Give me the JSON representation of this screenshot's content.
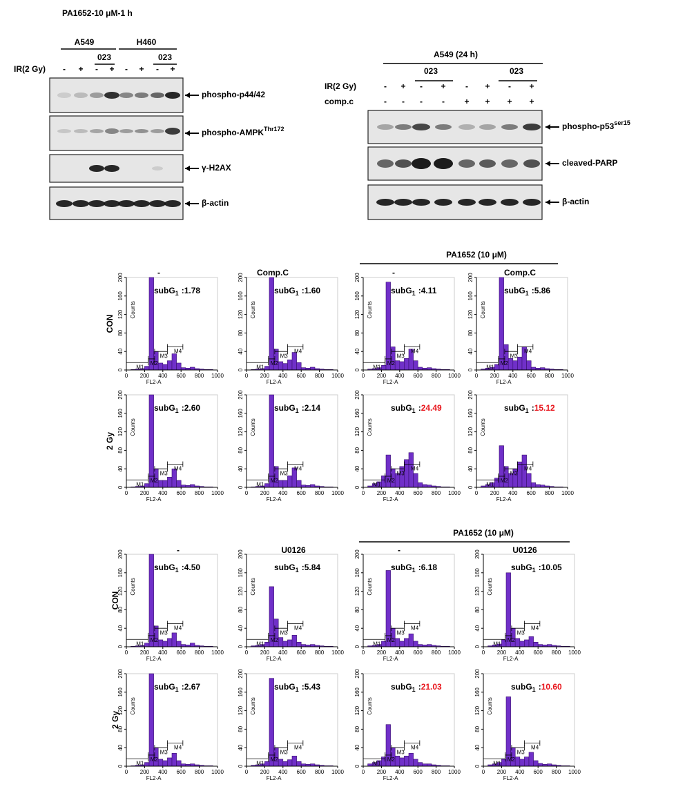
{
  "blots": [
    {
      "title": "PA1652-10 μM-1 h",
      "groups": [
        "A549",
        "H460"
      ],
      "drug": [
        "023",
        "023"
      ],
      "row_labels": [
        "IR(2 Gy)"
      ],
      "ir": [
        "-",
        "+",
        "-",
        "+",
        "-",
        "+",
        "-",
        "+"
      ],
      "proteins": [
        {
          "text": "phospho-p44/42"
        },
        {
          "text": "phospho-AMPK",
          "sup": "Thr172"
        },
        {
          "text": "γ-H2AX"
        },
        {
          "text": "β-actin"
        }
      ]
    },
    {
      "title": "A549 (24 h)",
      "drug": [
        "023",
        "023"
      ],
      "row_labels": [
        "IR(2 Gy)",
        "comp.c"
      ],
      "ir": [
        "-",
        "+",
        "-",
        "+",
        "-",
        "+",
        "-",
        "+"
      ],
      "compc": [
        "-",
        "-",
        "-",
        "-",
        "+",
        "+",
        "+",
        "+"
      ],
      "proteins": [
        {
          "text": "phospho-p53",
          "sup": "ser15"
        },
        {
          "text": "cleaved-PARP"
        },
        {
          "text": "β-actin"
        }
      ]
    }
  ],
  "histogram": {
    "xlim": [
      0,
      1000
    ],
    "ylim": [
      0,
      200
    ],
    "xticks": [
      0,
      200,
      400,
      600,
      800,
      1000
    ],
    "yticks": [
      0,
      40,
      80,
      120,
      160,
      200
    ],
    "xlabel": "FL2-A",
    "ylabel": "Counts",
    "bins": [
      0,
      50,
      100,
      150,
      200,
      250,
      300,
      350,
      400,
      450,
      500,
      550,
      600,
      650,
      700,
      750,
      800,
      850,
      900,
      950,
      1000
    ],
    "fill": "#7030c8",
    "gates": [
      {
        "label": "M1",
        "range": [
          0,
          240
        ]
      },
      {
        "label": "M2",
        "range": [
          240,
          310
        ]
      },
      {
        "label": "M3",
        "range": [
          310,
          450
        ]
      },
      {
        "label": "M4",
        "range": [
          450,
          620
        ]
      }
    ],
    "subg1": {
      "prefix": "subG",
      "sub": "1",
      "sep": ":"
    }
  },
  "flow": [
    {
      "header": "PA1652 (10 μM)",
      "columns": [
        "-",
        "Comp.C",
        "-",
        "Comp.C"
      ],
      "rows": [
        {
          "label": "CON",
          "plots": [
            {
              "value": "1.78",
              "color": "#000000",
              "counts": [
                0,
                1,
                2,
                3,
                8,
                200,
                40,
                15,
                12,
                20,
                35,
                15,
                5,
                4,
                6,
                3,
                2,
                1,
                1,
                0
              ]
            },
            {
              "value": "1.60",
              "color": "#000000",
              "counts": [
                0,
                1,
                2,
                3,
                8,
                200,
                45,
                18,
                14,
                22,
                38,
                16,
                5,
                4,
                6,
                3,
                2,
                1,
                1,
                0
              ]
            },
            {
              "value": "4.11",
              "color": "#000000",
              "counts": [
                0,
                2,
                3,
                5,
                10,
                190,
                50,
                20,
                18,
                25,
                45,
                20,
                6,
                4,
                5,
                3,
                2,
                1,
                1,
                0
              ]
            },
            {
              "value": "5.86",
              "color": "#000000",
              "counts": [
                0,
                2,
                4,
                6,
                12,
                200,
                55,
                25,
                20,
                28,
                50,
                20,
                6,
                4,
                5,
                3,
                2,
                1,
                1,
                0
              ]
            }
          ]
        },
        {
          "label": "2 Gy",
          "plots": [
            {
              "value": "2.60",
              "color": "#000000",
              "counts": [
                0,
                1,
                2,
                3,
                8,
                200,
                40,
                15,
                15,
                22,
                40,
                15,
                5,
                4,
                6,
                3,
                2,
                1,
                1,
                0
              ]
            },
            {
              "value": "2.14",
              "color": "#000000",
              "counts": [
                0,
                1,
                2,
                3,
                8,
                200,
                45,
                15,
                15,
                25,
                42,
                15,
                5,
                4,
                6,
                3,
                2,
                1,
                1,
                0
              ]
            },
            {
              "value": "24.49",
              "color": "#e8141b",
              "counts": [
                0,
                3,
                8,
                12,
                25,
                70,
                40,
                30,
                45,
                60,
                75,
                30,
                10,
                6,
                5,
                3,
                2,
                1,
                1,
                0
              ]
            },
            {
              "value": "15.12",
              "color": "#e8141b",
              "counts": [
                0,
                3,
                6,
                10,
                20,
                90,
                45,
                30,
                40,
                55,
                70,
                30,
                10,
                6,
                5,
                3,
                2,
                1,
                1,
                0
              ]
            }
          ]
        }
      ]
    },
    {
      "header": "PA1652 (10 μM)",
      "columns": [
        "-",
        "U0126",
        "-",
        "U0126"
      ],
      "rows": [
        {
          "label": "CON",
          "plots": [
            {
              "value": "4.50",
              "color": "#000000",
              "counts": [
                0,
                1,
                2,
                3,
                8,
                200,
                45,
                15,
                12,
                18,
                30,
                12,
                5,
                4,
                8,
                3,
                2,
                1,
                1,
                0
              ]
            },
            {
              "value": "5.84",
              "color": "#000000",
              "counts": [
                0,
                2,
                3,
                5,
                10,
                130,
                60,
                20,
                12,
                15,
                25,
                10,
                5,
                4,
                5,
                3,
                2,
                1,
                1,
                0
              ]
            },
            {
              "value": "6.18",
              "color": "#000000",
              "counts": [
                0,
                2,
                3,
                5,
                12,
                165,
                40,
                18,
                12,
                18,
                28,
                12,
                5,
                4,
                5,
                3,
                2,
                1,
                1,
                0
              ]
            },
            {
              "value": "10.05",
              "color": "#000000",
              "counts": [
                0,
                2,
                4,
                6,
                15,
                160,
                40,
                18,
                12,
                15,
                22,
                10,
                5,
                4,
                5,
                3,
                2,
                1,
                1,
                0
              ]
            }
          ]
        },
        {
          "label": "2 Gy",
          "plots": [
            {
              "value": "2.67",
              "color": "#000000",
              "counts": [
                0,
                1,
                2,
                3,
                8,
                200,
                40,
                15,
                12,
                18,
                28,
                12,
                5,
                4,
                5,
                3,
                2,
                1,
                1,
                0
              ]
            },
            {
              "value": "5.43",
              "color": "#000000",
              "counts": [
                0,
                2,
                3,
                5,
                10,
                190,
                40,
                15,
                10,
                14,
                22,
                10,
                5,
                4,
                5,
                3,
                2,
                1,
                1,
                0
              ]
            },
            {
              "value": "21.03",
              "color": "#e8141b",
              "counts": [
                0,
                5,
                8,
                12,
                20,
                90,
                40,
                22,
                18,
                22,
                28,
                15,
                8,
                5,
                5,
                3,
                2,
                1,
                1,
                0
              ]
            },
            {
              "value": "10.60",
              "color": "#e8141b",
              "counts": [
                0,
                3,
                5,
                8,
                15,
                150,
                40,
                20,
                15,
                20,
                30,
                12,
                6,
                4,
                5,
                3,
                2,
                1,
                1,
                0
              ]
            }
          ]
        }
      ]
    }
  ]
}
